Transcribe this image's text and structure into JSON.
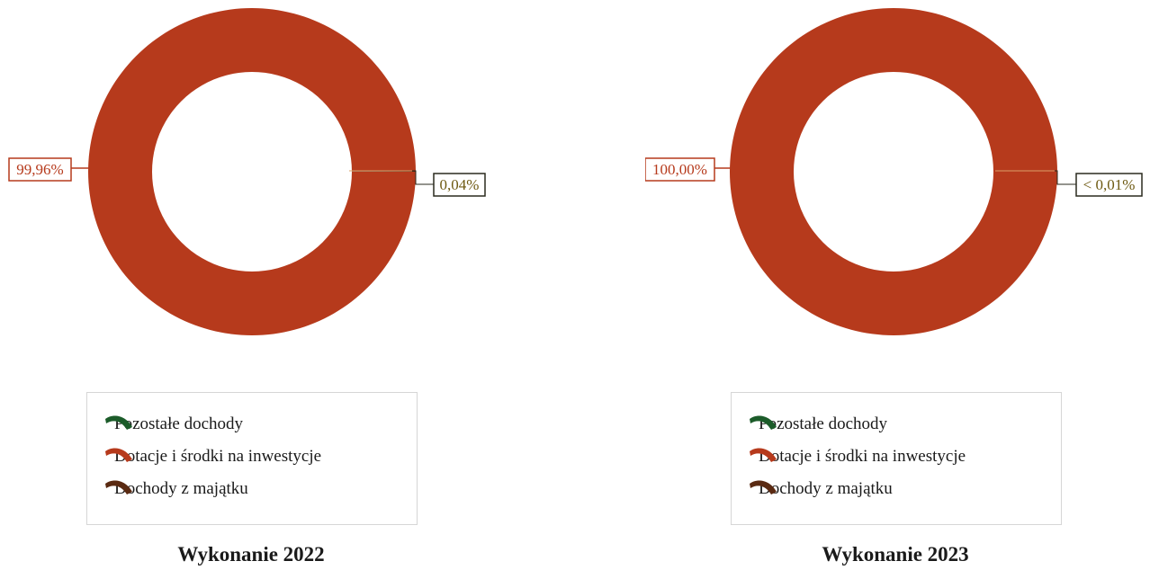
{
  "colors": {
    "pozostale": "#1c5c2a",
    "dotacje": "#b63a1c",
    "majatek": "#5a2a12",
    "box_major": "#b63a1c",
    "box_minor": "#2a2a1e",
    "minor_text": "#6e5a12"
  },
  "legend": {
    "items": [
      {
        "label": "Pozostałe dochody",
        "color": "#1c5c2a"
      },
      {
        "label": "Dotacje i środki na inwestycje",
        "color": "#b63a1c"
      },
      {
        "label": "Dochody z majątku",
        "color": "#5a2a12"
      }
    ]
  },
  "chart_data": [
    {
      "type": "donut",
      "title": "Wykonanie 2022",
      "categories": [
        "Pozostałe dochody",
        "Dotacje i środki na inwestycje",
        "Dochody z majątku"
      ],
      "values": [
        0.0,
        99.96,
        0.04
      ],
      "data_labels": {
        "major": "99,96%",
        "minor": "0,04%"
      }
    },
    {
      "type": "donut",
      "title": "Wykonanie 2023",
      "categories": [
        "Pozostałe dochody",
        "Dotacje i środki na inwestycje",
        "Dochody z majątku"
      ],
      "values": [
        0.0,
        100.0,
        0.005
      ],
      "data_labels": {
        "major": "100,00%",
        "minor": "< 0,01%"
      }
    }
  ]
}
